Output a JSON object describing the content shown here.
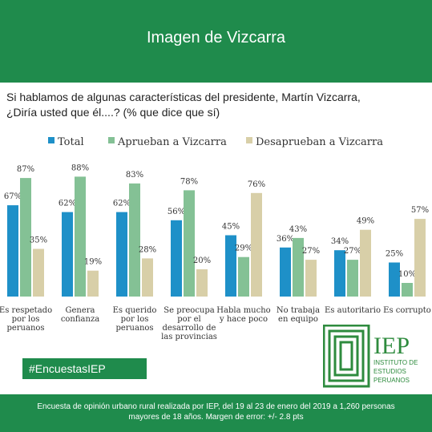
{
  "header": {
    "title": "Imagen de Vizcarra"
  },
  "question": {
    "line1": "Si hablamos de algunas características del presidente, Martín Vizcarra,",
    "line2": "¿Diría usted que él....? (% que dice que sí)"
  },
  "chart_data": {
    "type": "bar",
    "categories": [
      [
        "Es respetado",
        "por los",
        "peruanos"
      ],
      [
        "Genera",
        "confianza"
      ],
      [
        "Es querido",
        "por los",
        "peruanos"
      ],
      [
        "Se preocupa",
        "por el",
        "desarrollo de",
        "las provincias"
      ],
      [
        "Habla mucho",
        "y hace poco"
      ],
      [
        "No trabaja",
        "en equipo"
      ],
      [
        "Es autoritario"
      ],
      [
        "Es corrupto"
      ]
    ],
    "series": [
      {
        "name": "Total",
        "color": "#1e90c8",
        "values": [
          67,
          62,
          62,
          56,
          45,
          36,
          34,
          25
        ]
      },
      {
        "name": "Aprueban a Vizcarra",
        "color": "#84c195",
        "values": [
          87,
          88,
          83,
          78,
          29,
          43,
          27,
          10
        ]
      },
      {
        "name": "Desaprueban a Vizcarra",
        "color": "#d8cfa8",
        "values": [
          35,
          19,
          28,
          20,
          76,
          27,
          49,
          57
        ]
      }
    ],
    "ylim": [
      0,
      100
    ],
    "grid": false,
    "legend": "top"
  },
  "hashtag": "#EncuestasIEP",
  "logo": {
    "text": "IEP",
    "sub": [
      "INSTITUTO DE",
      "ESTUDIOS",
      "PERUANOS"
    ],
    "color": "#2e8b3e"
  },
  "footer": {
    "line1": "Encuesta de opinión urbano rural realizada por IEP, del 19 al 23 de enero del 2019 a 1,260 personas",
    "line2": "mayores de 18 años. Margen de error: +/- 2.8 pts"
  }
}
